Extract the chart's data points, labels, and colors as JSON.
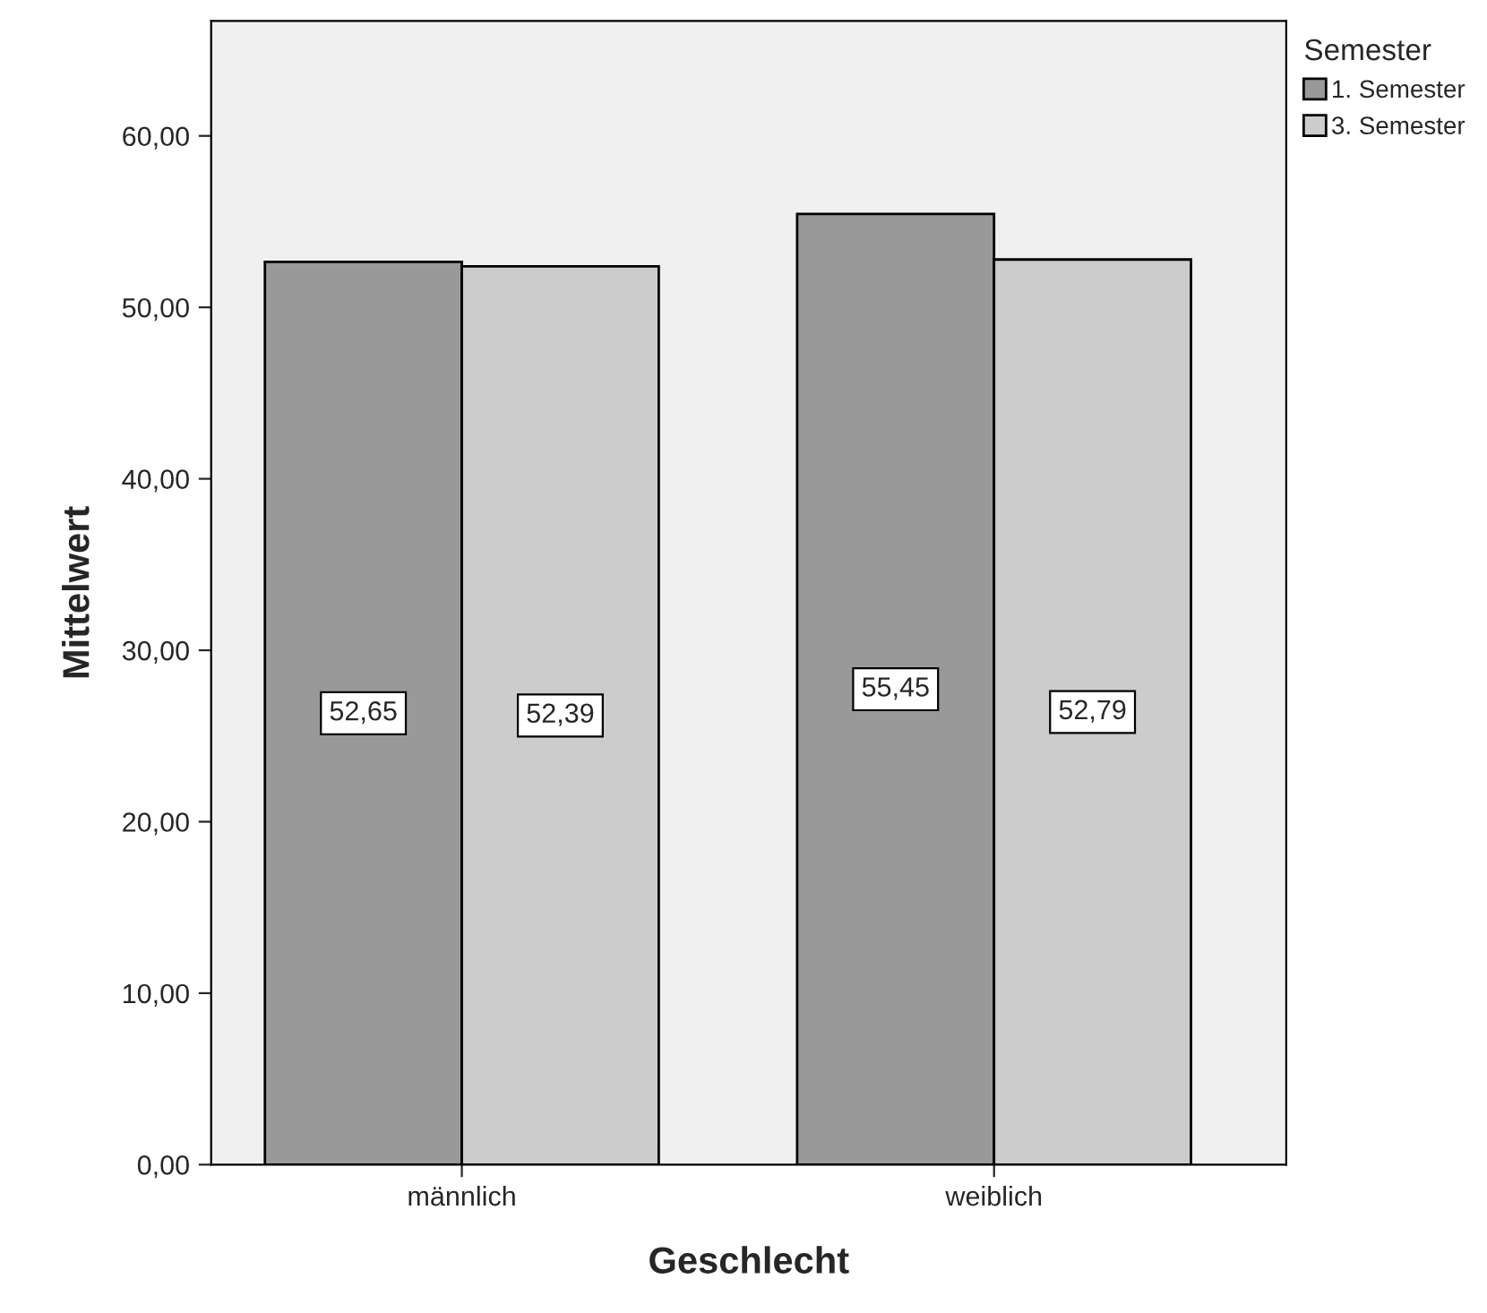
{
  "chart_data": {
    "type": "bar",
    "xlabel": "Geschlecht",
    "ylabel": "Mittelwert",
    "legend_title": "Semester",
    "categories": [
      "männlich",
      "weiblich"
    ],
    "series": [
      {
        "name": "1. Semester",
        "color": "#999999",
        "values": [
          52.65,
          55.45
        ],
        "value_labels": [
          "52,65",
          "55,45"
        ]
      },
      {
        "name": "3. Semester",
        "color": "#cccccc",
        "values": [
          52.39,
          52.79
        ],
        "value_labels": [
          "52,39",
          "52,79"
        ]
      }
    ],
    "ylim": [
      0,
      66.7
    ],
    "yticks": [
      {
        "value": 0,
        "label": "0,00"
      },
      {
        "value": 10,
        "label": "10,00"
      },
      {
        "value": 20,
        "label": "20,00"
      },
      {
        "value": 30,
        "label": "30,00"
      },
      {
        "value": 40,
        "label": "40,00"
      },
      {
        "value": 50,
        "label": "50,00"
      },
      {
        "value": 60,
        "label": "60,00"
      }
    ],
    "grid": false,
    "legend": "top right"
  }
}
